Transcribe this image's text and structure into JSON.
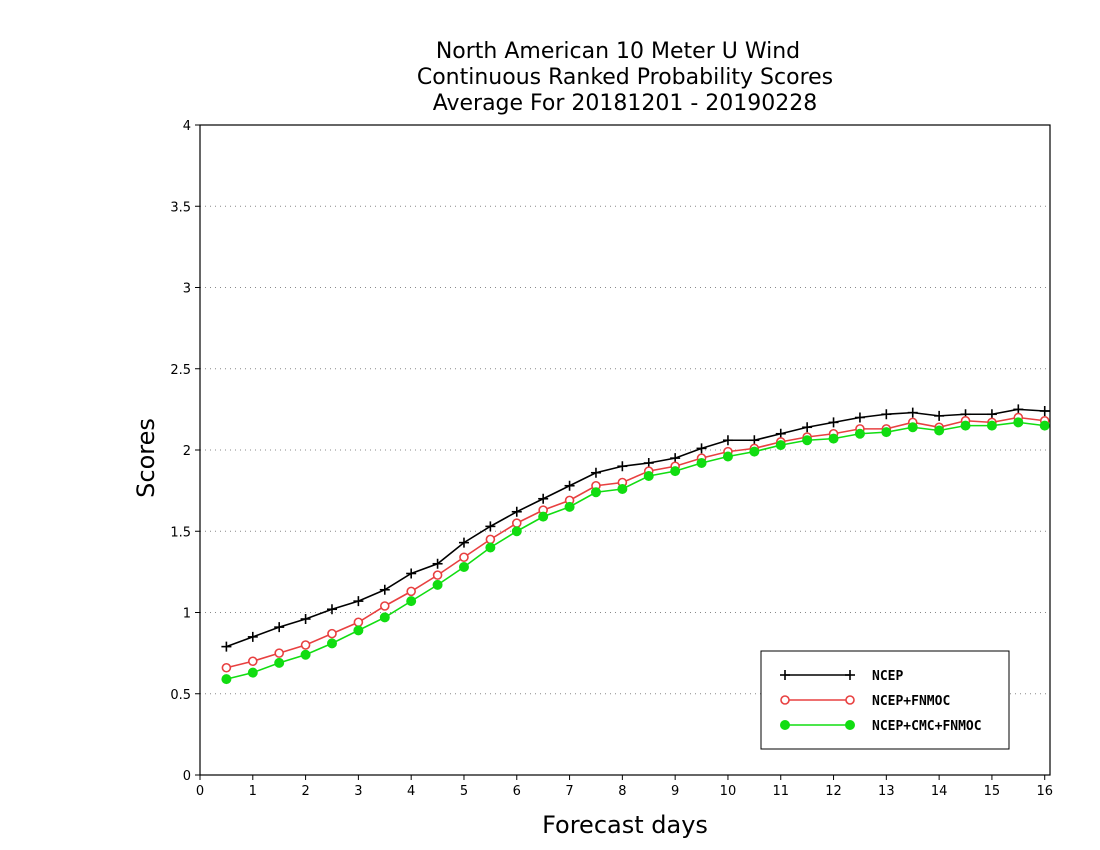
{
  "chart_data": {
    "type": "line",
    "title": [
      "North American 10 Meter U Wind",
      "Continuous Ranked Probability Scores",
      "Average For 20181201 - 20190228"
    ],
    "xlabel": "Forecast days",
    "ylabel": "Scores",
    "xlim": [
      0,
      16.1
    ],
    "ylim": [
      0,
      4
    ],
    "xticks": [
      "0",
      "1",
      "2",
      "3",
      "4",
      "5",
      "6",
      "7",
      "8",
      "9",
      "10",
      "11",
      "12",
      "13",
      "14",
      "15",
      "16"
    ],
    "yticks": [
      "0",
      "0.5",
      "1",
      "1.5",
      "2",
      "2.5",
      "3",
      "3.5",
      "4"
    ],
    "grid": "horizontal dotted",
    "legend_position": "bottom-right",
    "x": [
      0.5,
      1.0,
      1.5,
      2.0,
      2.5,
      3.0,
      3.5,
      4.0,
      4.5,
      5.0,
      5.5,
      6.0,
      6.5,
      7.0,
      7.5,
      8.0,
      8.5,
      9.0,
      9.5,
      10.0,
      10.5,
      11.0,
      11.5,
      12.0,
      12.5,
      13.0,
      13.5,
      14.0,
      14.5,
      15.0,
      15.5,
      16.0
    ],
    "series": [
      {
        "name": "NCEP",
        "color": "#000000",
        "marker": "plus",
        "values": [
          0.79,
          0.85,
          0.91,
          0.96,
          1.02,
          1.07,
          1.14,
          1.24,
          1.3,
          1.43,
          1.53,
          1.62,
          1.7,
          1.78,
          1.86,
          1.9,
          1.92,
          1.95,
          2.01,
          2.06,
          2.06,
          2.1,
          2.14,
          2.17,
          2.2,
          2.22,
          2.23,
          2.21,
          2.22,
          2.22,
          2.25,
          2.24
        ]
      },
      {
        "name": "NCEP+FNMOC",
        "color": "#e84040",
        "marker": "open-circle",
        "values": [
          0.66,
          0.7,
          0.75,
          0.8,
          0.87,
          0.94,
          1.04,
          1.13,
          1.23,
          1.34,
          1.45,
          1.55,
          1.63,
          1.69,
          1.78,
          1.8,
          1.87,
          1.9,
          1.95,
          1.99,
          2.01,
          2.05,
          2.08,
          2.1,
          2.13,
          2.13,
          2.17,
          2.14,
          2.18,
          2.17,
          2.2,
          2.18
        ]
      },
      {
        "name": "NCEP+CMC+FNMOC",
        "color": "#11dd11",
        "marker": "filled-circle",
        "values": [
          0.59,
          0.63,
          0.69,
          0.74,
          0.81,
          0.89,
          0.97,
          1.07,
          1.17,
          1.28,
          1.4,
          1.5,
          1.59,
          1.65,
          1.74,
          1.76,
          1.84,
          1.87,
          1.92,
          1.96,
          1.99,
          2.03,
          2.06,
          2.07,
          2.1,
          2.11,
          2.14,
          2.12,
          2.15,
          2.15,
          2.17,
          2.15
        ]
      }
    ]
  }
}
